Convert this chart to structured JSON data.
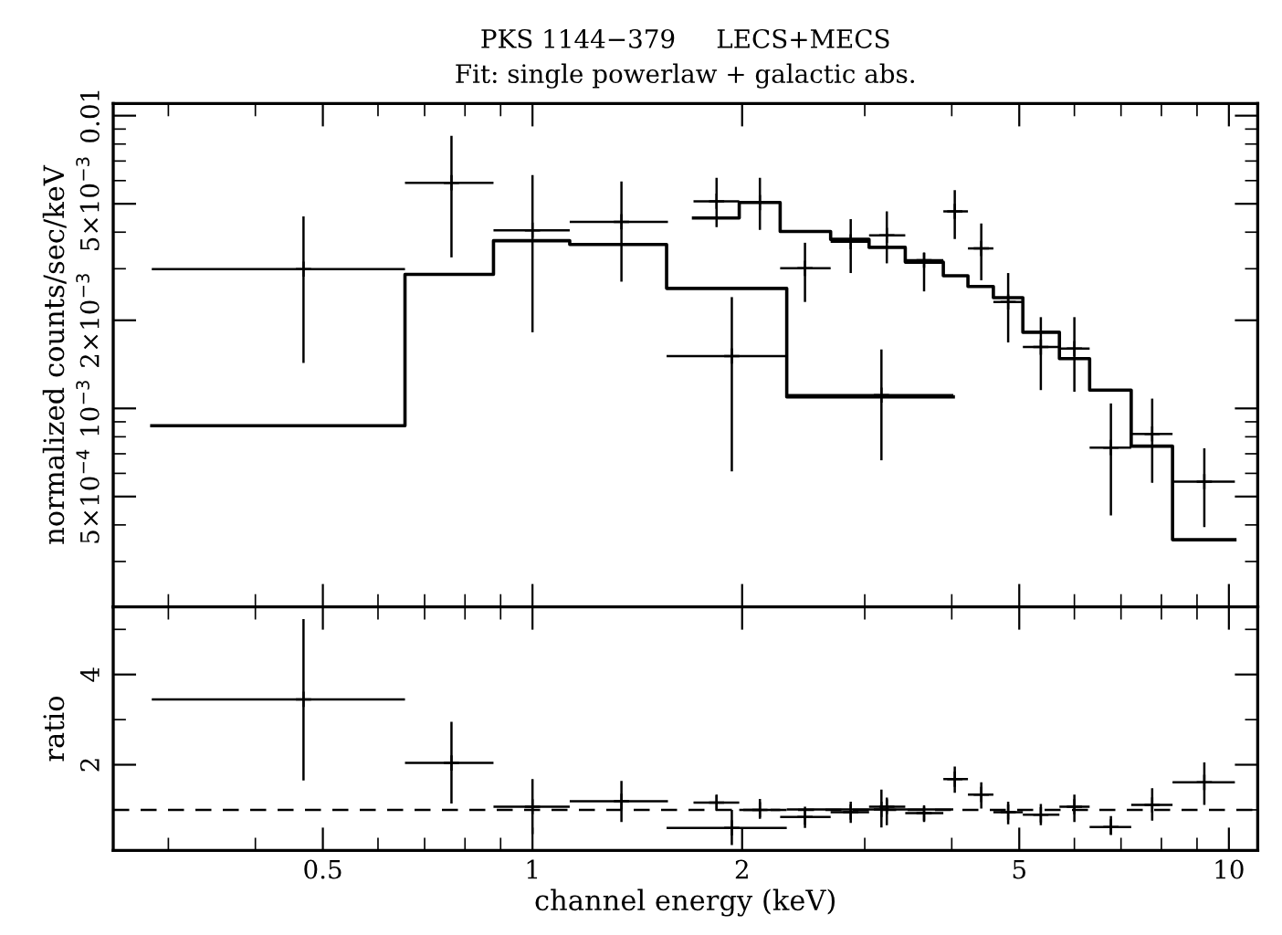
{
  "chart_data": [
    {
      "type": "scatter",
      "title": "PKS 1144−379     LECS+MECS",
      "subtitle": "Fit: single powerlaw + galactic abs.",
      "ylabel": "normalized counts/sec/keV",
      "log": "xy",
      "marker": "cross",
      "tick_labels": "y",
      "xlim": [
        0.25,
        11
      ],
      "ylim": [
        0.00021,
        0.011
      ],
      "xticks": [
        {
          "value": 0.3,
          "label": null
        },
        {
          "value": 0.4,
          "label": null
        },
        0.5,
        {
          "value": 0.6,
          "label": null
        },
        {
          "value": 0.7,
          "label": null
        },
        {
          "value": 0.8,
          "label": null
        },
        {
          "value": 0.9,
          "label": null
        },
        1,
        2,
        {
          "value": 3,
          "label": null
        },
        {
          "value": 4,
          "label": null
        },
        5,
        {
          "value": 6,
          "label": null
        },
        {
          "value": 7,
          "label": null
        },
        {
          "value": 8,
          "label": null
        },
        {
          "value": 9,
          "label": null
        },
        10
      ],
      "yticks": [
        {
          "value": 0.0003,
          "label": null
        },
        {
          "value": 0.0004,
          "label": null
        },
        {
          "value": 0.0005,
          "label": "5×10$^{−4}$"
        },
        {
          "value": 0.0006,
          "label": null
        },
        {
          "value": 0.0007,
          "label": null
        },
        {
          "value": 0.0008,
          "label": null
        },
        {
          "value": 0.0009,
          "label": null
        },
        {
          "value": 0.001,
          "label": "10$^{−3}$"
        },
        {
          "value": 0.002,
          "label": "2×10$^{−3}$"
        },
        {
          "value": 0.003,
          "label": null
        },
        {
          "value": 0.004,
          "label": null
        },
        {
          "value": 0.005,
          "label": "5×10$^{−3}$"
        },
        {
          "value": 0.006,
          "label": null
        },
        {
          "value": 0.007,
          "label": null
        },
        {
          "value": 0.008,
          "label": null
        },
        {
          "value": 0.009,
          "label": null
        },
        0.01
      ],
      "series": [
        {
          "type": "scatter",
          "color": "#000000",
          "x": [
            0.469,
            0.765,
            1.0,
            1.342,
            1.933,
            3.17
          ],
          "xerrors": [
            [
              0.284,
              0.656
            ],
            [
              0.656,
              0.879
            ],
            [
              0.879,
              1.131
            ],
            [
              1.131,
              1.565
            ],
            [
              1.558,
              2.318
            ],
            [
              2.318,
              4.02
            ]
          ],
          "values": [
            0.00299,
            0.0059,
            0.00406,
            0.00434,
            0.00151,
            0.00111
          ],
          "errors": [
            [
              0.00143,
              0.00453
            ],
            [
              0.00328,
              0.00853
            ],
            [
              0.00182,
              0.00627
            ],
            [
              0.00271,
              0.00596
            ],
            [
              0.000609,
              0.0024
            ],
            [
              0.000665,
              0.00159
            ]
          ]
        },
        {
          "type": "step",
          "marker": "none",
          "color": "#000000",
          "x": [
            0.284,
            0.656,
            0.879,
            1.131,
            1.558,
            2.318,
            4.02
          ],
          "values": [
            0.000873,
            0.00287,
            0.00374,
            0.00363,
            0.00257,
            0.001095,
            0.001095
          ]
        },
        {
          "type": "scatter",
          "color": "#000000",
          "x": [
            1.838,
            2.121,
            2.462,
            2.864,
            3.227,
            3.65,
            4.04,
            4.41,
            4.82,
            5.37,
            6.0,
            6.77,
            7.76,
            9.22
          ],
          "xerrors": [
            [
              1.703,
              1.981
            ],
            [
              1.981,
              2.268
            ],
            [
              2.268,
              2.68
            ],
            [
              2.68,
              3.043
            ],
            [
              3.043,
              3.43
            ],
            [
              3.43,
              3.89
            ],
            [
              3.89,
              4.22
            ],
            [
              4.22,
              4.59
            ],
            [
              4.59,
              5.06
            ],
            [
              5.06,
              5.71
            ],
            [
              5.71,
              6.31
            ],
            [
              6.31,
              7.24
            ],
            [
              7.24,
              8.3
            ],
            [
              8.3,
              10.2
            ]
          ],
          "values": [
            0.0051,
            0.00505,
            0.00301,
            0.00371,
            0.0039,
            0.00321,
            0.00471,
            0.00352,
            0.00231,
            0.00162,
            0.0016,
            0.000735,
            0.000818,
            0.000562
          ],
          "errors": [
            [
              0.00416,
              0.00613
            ],
            [
              0.00407,
              0.00613
            ],
            [
              0.00231,
              0.00368
            ],
            [
              0.0029,
              0.00443
            ],
            [
              0.00313,
              0.00471
            ],
            [
              0.00251,
              0.0034
            ],
            [
              0.00379,
              0.00557
            ],
            [
              0.00274,
              0.00428
            ],
            [
              0.00168,
              0.0029
            ],
            [
              0.001155,
              0.00205
            ],
            [
              0.00114,
              0.00205
            ],
            [
              0.000431,
              0.00104
            ],
            [
              0.000557,
              0.00108
            ],
            [
              0.000393,
              0.000731
            ]
          ]
        },
        {
          "type": "step",
          "marker": "none",
          "color": "#000000",
          "x": [
            1.703,
            1.981,
            2.268,
            2.68,
            3.043,
            3.43,
            3.89,
            4.22,
            4.59,
            5.06,
            5.71,
            6.31,
            7.24,
            8.3,
            10.2
          ],
          "values": [
            0.00447,
            0.00505,
            0.00402,
            0.00378,
            0.00355,
            0.00316,
            0.00284,
            0.00261,
            0.00239,
            0.00182,
            0.00148,
            0.001155,
            0.000743,
            0.000356,
            0.000356
          ]
        }
      ]
    },
    {
      "type": "scatter",
      "xlabel": "channel energy (keV)",
      "ylabel": "ratio",
      "log": "x",
      "marker": "cross",
      "xlim": [
        0.25,
        11
      ],
      "ylim": [
        0.1,
        5.5
      ],
      "xticks": [
        {
          "value": 0.3,
          "label": null
        },
        {
          "value": 0.4,
          "label": null
        },
        0.5,
        {
          "value": 0.6,
          "label": null
        },
        {
          "value": 0.7,
          "label": null
        },
        {
          "value": 0.8,
          "label": null
        },
        {
          "value": 0.9,
          "label": null
        },
        1,
        2,
        {
          "value": 3,
          "label": null
        },
        {
          "value": 4,
          "label": null
        },
        5,
        {
          "value": 6,
          "label": null
        },
        {
          "value": 7,
          "label": null
        },
        {
          "value": 8,
          "label": null
        },
        {
          "value": 9,
          "label": null
        },
        10
      ],
      "yticks": [
        {
          "value": 1,
          "label": null
        },
        2,
        {
          "value": 3,
          "label": null
        },
        4,
        {
          "value": 5,
          "label": null
        }
      ],
      "ref_lines": [
        {
          "axis": "y",
          "value": 1,
          "line_style": "dashed",
          "color": "#000000"
        }
      ],
      "series": [
        {
          "type": "scatter",
          "color": "#000000",
          "x": [
            0.469,
            0.765,
            1.0,
            1.342,
            1.933,
            3.17
          ],
          "xerrors": [
            [
              0.284,
              0.656
            ],
            [
              0.656,
              0.879
            ],
            [
              0.879,
              1.131
            ],
            [
              1.131,
              1.565
            ],
            [
              1.558,
              2.318
            ],
            [
              2.318,
              4.02
            ]
          ],
          "values": [
            3.45,
            2.04,
            1.07,
            1.19,
            0.6,
            1.01
          ],
          "errors": [
            [
              1.65,
              5.23
            ],
            [
              1.14,
              2.95
            ],
            [
              0.46,
              1.68
            ],
            [
              0.73,
              1.64
            ],
            [
              0.22,
              1.0
            ],
            [
              0.61,
              1.45
            ]
          ]
        },
        {
          "type": "scatter",
          "color": "#000000",
          "x": [
            1.838,
            2.121,
            2.462,
            2.864,
            3.227,
            3.65,
            4.04,
            4.41,
            4.82,
            5.37,
            6.0,
            6.77,
            7.76,
            9.22
          ],
          "xerrors": [
            [
              1.703,
              1.981
            ],
            [
              1.981,
              2.268
            ],
            [
              2.268,
              2.68
            ],
            [
              2.68,
              3.043
            ],
            [
              3.043,
              3.43
            ],
            [
              3.43,
              3.89
            ],
            [
              3.89,
              4.22
            ],
            [
              4.22,
              4.59
            ],
            [
              4.59,
              5.06
            ],
            [
              5.06,
              5.71
            ],
            [
              5.71,
              6.31
            ],
            [
              6.31,
              7.24
            ],
            [
              7.24,
              8.3
            ],
            [
              8.3,
              10.2
            ]
          ],
          "values": [
            1.16,
            1.0,
            0.84,
            0.95,
            1.07,
            0.93,
            1.68,
            1.34,
            0.95,
            0.89,
            1.07,
            0.62,
            1.11,
            1.61
          ],
          "errors": [
            [
              0.98,
              1.34
            ],
            [
              0.8,
              1.24
            ],
            [
              0.6,
              1.07
            ],
            [
              0.71,
              1.18
            ],
            [
              0.66,
              1.27
            ],
            [
              0.73,
              1.07
            ],
            [
              1.38,
              1.96
            ],
            [
              1.03,
              1.61
            ],
            [
              0.68,
              1.18
            ],
            [
              0.66,
              1.13
            ],
            [
              0.73,
              1.34
            ],
            [
              0.44,
              0.86
            ],
            [
              0.76,
              1.48
            ],
            [
              1.11,
              2.05
            ]
          ]
        }
      ]
    }
  ]
}
